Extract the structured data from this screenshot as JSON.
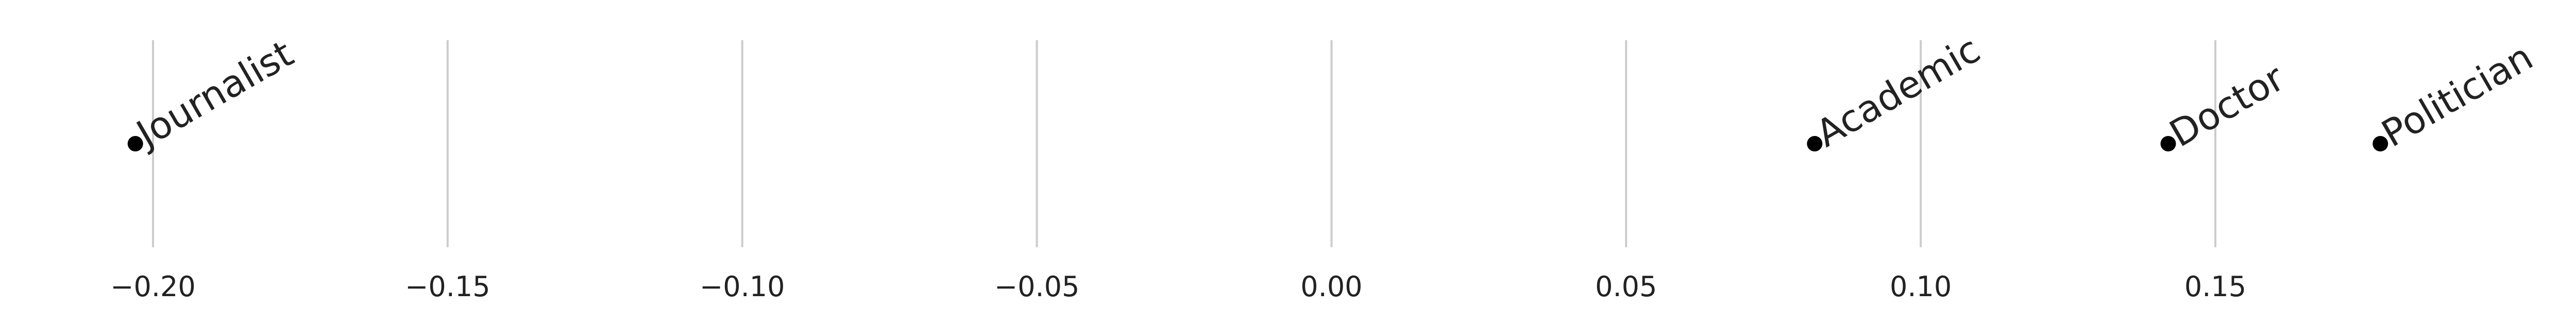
{
  "chart_data": {
    "type": "scatter",
    "title": "",
    "xlabel": "",
    "ylabel": "",
    "xlim": [
      -0.205,
      0.205
    ],
    "grid": "vertical",
    "legend": "none",
    "x_ticks": [
      -0.2,
      -0.15,
      -0.1,
      -0.05,
      0.0,
      0.05,
      0.1,
      0.15
    ],
    "x_tick_labels": [
      "−0.20",
      "−0.15",
      "−0.10",
      "−0.05",
      "0.00",
      "0.05",
      "0.10",
      "0.15"
    ],
    "points": [
      {
        "label": "Journalist",
        "x": -0.203
      },
      {
        "label": "Academic",
        "x": 0.082
      },
      {
        "label": "Doctor",
        "x": 0.142
      },
      {
        "label": "Politician",
        "x": 0.178
      }
    ],
    "colors": {
      "point": "#000000",
      "grid": "#cccccc",
      "text": "#222222"
    }
  }
}
